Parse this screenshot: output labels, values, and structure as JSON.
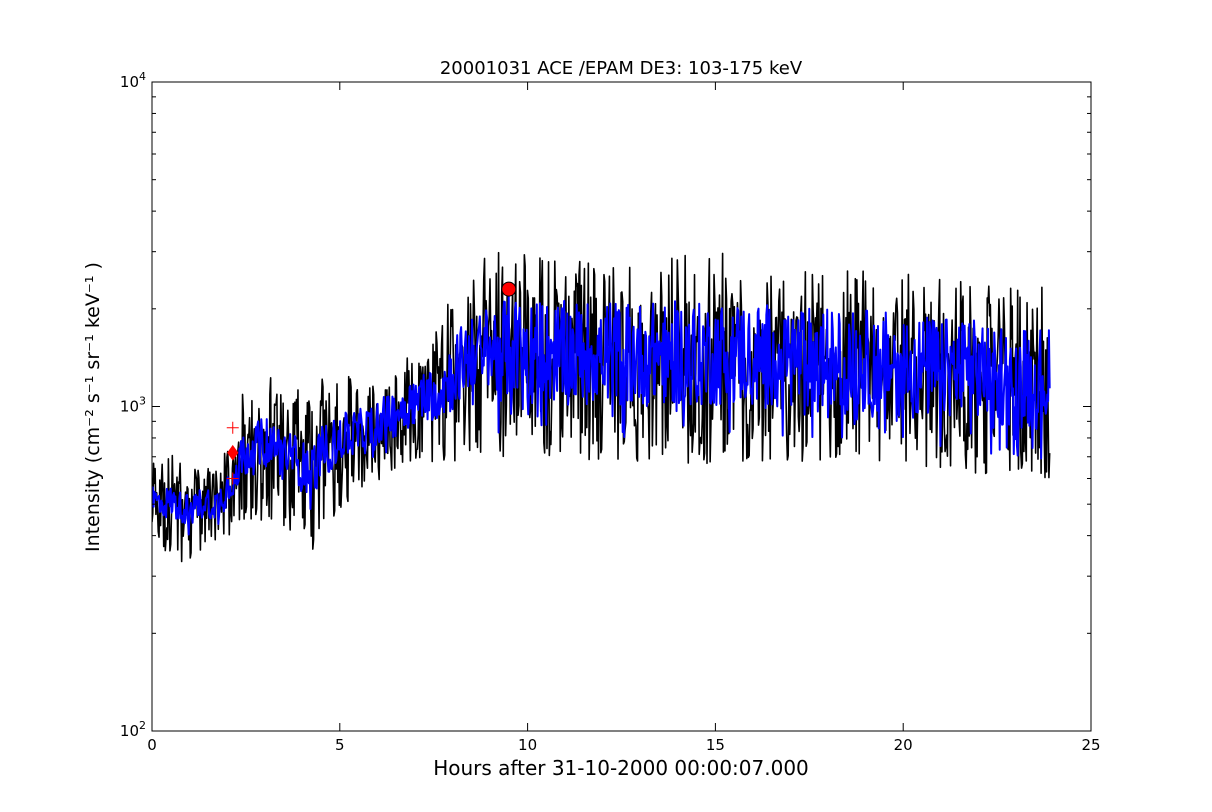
{
  "chart_data": {
    "type": "line",
    "title": "20001031 ACE /EPAM DE3: 103-175 keV",
    "xlabel": "Hours after 31-10-2000 00:00:07.000",
    "ylabel": "Intensity (cm⁻² s⁻¹ sr⁻¹ keV⁻¹ )",
    "xlim": [
      0,
      25
    ],
    "ylim": [
      100,
      10000
    ],
    "yscale": "log",
    "grid": false,
    "x_ticks": [
      "0",
      "5",
      "10",
      "15",
      "20",
      "25"
    ],
    "y_ticks": [
      {
        "base": "10",
        "exp": "2"
      },
      {
        "base": "10",
        "exp": "3"
      },
      {
        "base": "10",
        "exp": "4"
      }
    ],
    "series": [
      {
        "color": "#000000",
        "style": "raw",
        "x": [
          0.0,
          0.25,
          0.5,
          0.75,
          1.0,
          1.25,
          1.5,
          1.75,
          2.0,
          2.25,
          2.5,
          2.75,
          3.0,
          3.25,
          3.5,
          3.75,
          4.0,
          4.25,
          4.5,
          4.75,
          5.0,
          5.25,
          5.5,
          5.75,
          6.0,
          6.25,
          6.5,
          6.75,
          7.0,
          7.25,
          7.5,
          7.75,
          8.0,
          8.25,
          8.5,
          8.75,
          9.0,
          9.25,
          9.5,
          9.75,
          10.0,
          10.5,
          11.0,
          11.5,
          12.0,
          12.5,
          13.0,
          13.5,
          14.0,
          14.5,
          15.0,
          15.5,
          16.0,
          16.5,
          17.0,
          17.5,
          18.0,
          18.5,
          19.0,
          19.5,
          20.0,
          20.5,
          21.0,
          21.5,
          22.0,
          22.5,
          23.0,
          23.5,
          23.9
        ],
        "y": [
          520,
          500,
          510,
          490,
          480,
          500,
          510,
          500,
          560,
          650,
          720,
          740,
          780,
          760,
          720,
          700,
          650,
          640,
          720,
          750,
          800,
          820,
          830,
          850,
          900,
          920,
          960,
          1000,
          1050,
          1080,
          1100,
          1150,
          1250,
          1380,
          1450,
          1500,
          1480,
          1500,
          1520,
          1500,
          1480,
          1470,
          1460,
          1470,
          1480,
          1460,
          1450,
          1450,
          1460,
          1440,
          1450,
          1470,
          1450,
          1430,
          1420,
          1400,
          1390,
          1370,
          1380,
          1360,
          1350,
          1320,
          1310,
          1300,
          1280,
          1260,
          1240,
          1230,
          1220
        ],
        "spread": [
          1.35,
          1.4,
          1.45,
          1.5,
          1.45,
          1.4,
          1.35,
          1.45,
          1.5,
          1.6,
          1.7,
          1.75,
          1.8,
          1.75,
          1.7,
          1.75,
          1.8,
          1.85,
          1.8,
          1.7,
          1.65,
          1.6,
          1.6,
          1.55,
          1.55,
          1.5,
          1.5,
          1.5,
          1.55,
          1.6,
          1.7,
          1.85,
          1.95,
          2.0,
          2.05,
          2.1,
          2.15,
          2.15,
          2.2,
          2.2,
          2.2,
          2.15,
          2.15,
          2.2,
          2.15,
          2.15,
          2.2,
          2.2,
          2.25,
          2.2,
          2.2,
          2.2,
          2.15,
          2.15,
          2.1,
          2.1,
          2.1,
          2.1,
          2.1,
          2.05,
          2.05,
          2.05,
          2.1,
          2.1,
          2.05,
          2.05,
          2.05,
          2.05,
          2.05
        ]
      },
      {
        "color": "#0000ff",
        "style": "smoothed",
        "x": [
          0.0,
          0.25,
          0.5,
          0.75,
          1.0,
          1.25,
          1.5,
          1.75,
          2.0,
          2.25,
          2.5,
          2.75,
          3.0,
          3.25,
          3.5,
          3.75,
          4.0,
          4.25,
          4.5,
          4.75,
          5.0,
          5.25,
          5.5,
          5.75,
          6.0,
          6.25,
          6.5,
          6.75,
          7.0,
          7.25,
          7.5,
          7.75,
          8.0,
          8.25,
          8.5,
          8.75,
          9.0,
          9.25,
          9.5,
          9.75,
          10.0,
          10.5,
          11.0,
          11.5,
          12.0,
          12.5,
          13.0,
          13.5,
          14.0,
          14.5,
          15.0,
          15.5,
          16.0,
          16.5,
          17.0,
          17.5,
          18.0,
          18.5,
          19.0,
          19.5,
          20.0,
          20.5,
          21.0,
          21.5,
          22.0,
          22.5,
          23.0,
          23.5,
          23.9
        ],
        "y": [
          520,
          500,
          510,
          490,
          480,
          500,
          510,
          500,
          560,
          650,
          720,
          740,
          780,
          760,
          720,
          700,
          650,
          640,
          720,
          750,
          800,
          820,
          830,
          850,
          900,
          920,
          960,
          1000,
          1050,
          1080,
          1100,
          1150,
          1250,
          1380,
          1450,
          1500,
          1480,
          1500,
          1520,
          1500,
          1480,
          1470,
          1460,
          1470,
          1480,
          1460,
          1450,
          1450,
          1460,
          1440,
          1450,
          1470,
          1450,
          1430,
          1420,
          1400,
          1390,
          1370,
          1380,
          1360,
          1350,
          1320,
          1310,
          1300,
          1280,
          1260,
          1240,
          1230,
          1220
        ],
        "spread": [
          1.12,
          1.12,
          1.12,
          1.12,
          1.12,
          1.12,
          1.12,
          1.12,
          1.15,
          1.18,
          1.18,
          1.2,
          1.2,
          1.2,
          1.2,
          1.2,
          1.2,
          1.2,
          1.2,
          1.2,
          1.18,
          1.18,
          1.18,
          1.18,
          1.18,
          1.18,
          1.18,
          1.18,
          1.2,
          1.2,
          1.22,
          1.25,
          1.3,
          1.3,
          1.3,
          1.3,
          1.4,
          1.45,
          1.45,
          1.45,
          1.45,
          1.45,
          1.45,
          1.45,
          1.45,
          1.45,
          1.45,
          1.45,
          1.45,
          1.45,
          1.45,
          1.45,
          1.45,
          1.45,
          1.45,
          1.45,
          1.45,
          1.45,
          1.45,
          1.45,
          1.45,
          1.45,
          1.45,
          1.45,
          1.45,
          1.45,
          1.45,
          1.45,
          1.45
        ]
      }
    ],
    "markers": [
      {
        "type": "circle",
        "x": 9.5,
        "y": 2300,
        "color": "#ff0000"
      },
      {
        "type": "diamond",
        "x": 2.15,
        "y": 720,
        "color": "#ff0000"
      },
      {
        "type": "plus",
        "x": 2.15,
        "y": 860,
        "color": "#ff0000"
      },
      {
        "type": "plus",
        "x": 2.15,
        "y": 600,
        "color": "#ff0000"
      }
    ]
  }
}
